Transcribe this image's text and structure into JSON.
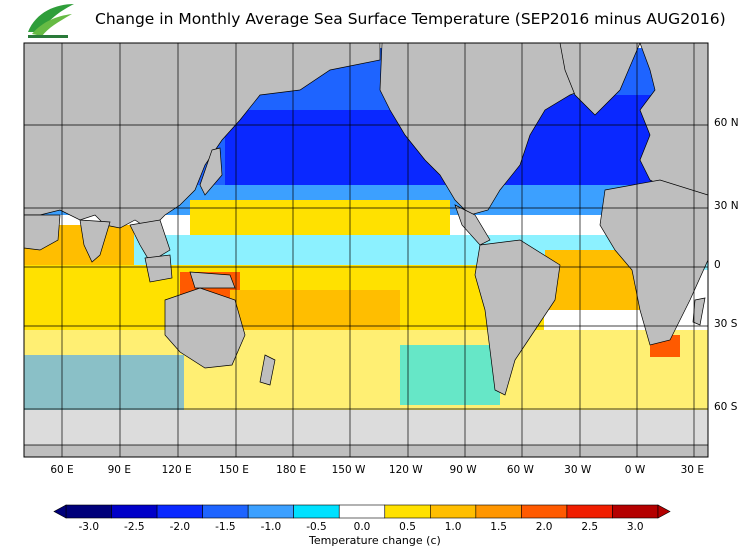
{
  "title": "Change in Monthly Average Sea Surface Temperature (SEP2016 minus AUG2016)",
  "map": {
    "lat_labels": [
      {
        "lat": 60,
        "text": "60 N"
      },
      {
        "lat": 30,
        "text": "30 N"
      },
      {
        "lat": 0,
        "text": "0"
      },
      {
        "lat": -30,
        "text": "30 S"
      },
      {
        "lat": -60,
        "text": "60 S"
      }
    ],
    "lon_labels": [
      {
        "lon": 60,
        "text": "60 E"
      },
      {
        "lon": 90,
        "text": "90 E"
      },
      {
        "lon": 120,
        "text": "120 E"
      },
      {
        "lon": 150,
        "text": "150 E"
      },
      {
        "lon": 180,
        "text": "180 E"
      },
      {
        "lon": 210,
        "text": "150 W"
      },
      {
        "lon": 240,
        "text": "120 W"
      },
      {
        "lon": 270,
        "text": "90 W"
      },
      {
        "lon": 300,
        "text": "60 W"
      },
      {
        "lon": 330,
        "text": "30 W"
      },
      {
        "lon": 360,
        "text": "0 W"
      },
      {
        "lon": 390,
        "text": "30 E"
      }
    ],
    "land_color": "#bebebe",
    "ice_color": "#dcdcdc",
    "grid": true
  },
  "colorbar": {
    "title": "Temperature change  (c)",
    "labels": [
      "-3.0",
      "-2.5",
      "-2.0",
      "-1.5",
      "-1.0",
      "-0.5",
      "0.0",
      "0.5",
      "1.0",
      "1.5",
      "2.0",
      "2.5",
      "3.0"
    ],
    "colors": [
      "#00007a",
      "#0000c8",
      "#0a28ff",
      "#1e64ff",
      "#3ca0ff",
      "#00e1ff",
      "#ffffff",
      "#ffe100",
      "#ffbe00",
      "#ff9600",
      "#ff5a00",
      "#f01e00",
      "#b40000"
    ]
  }
}
